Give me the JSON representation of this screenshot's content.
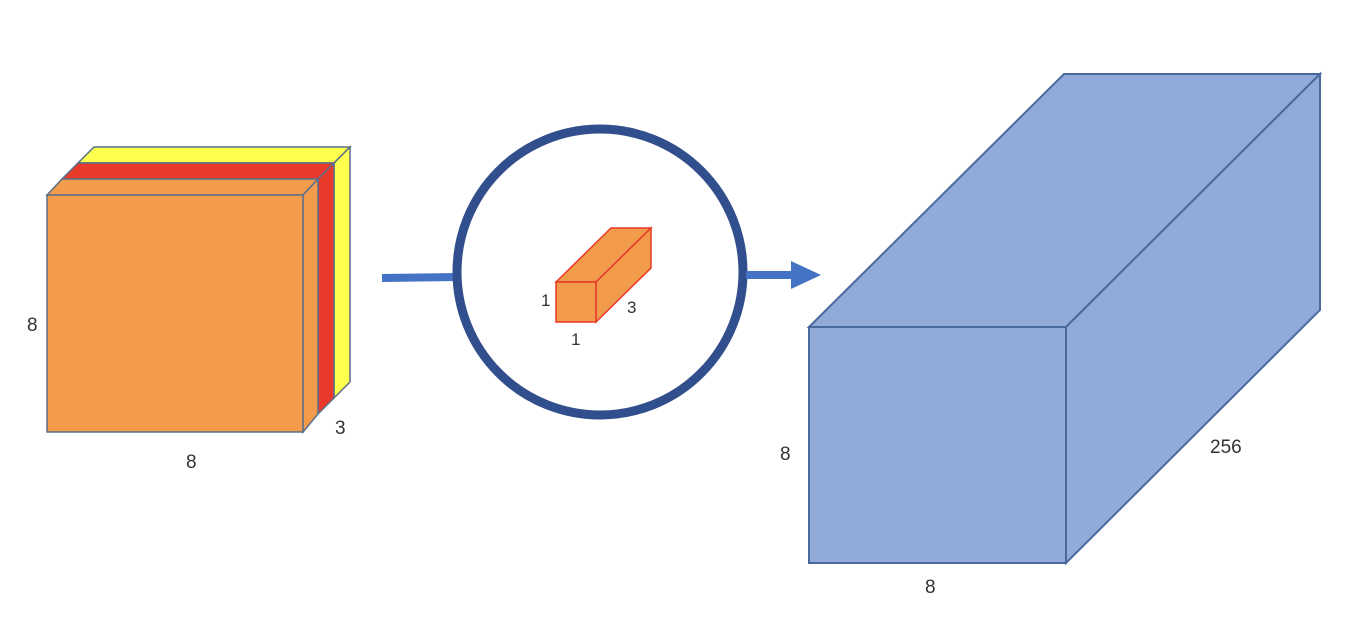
{
  "input_tensor": {
    "height_label": "8",
    "width_label": "8",
    "depth_label": "3",
    "channel_colors": [
      "#f29b4b",
      "#e8392a",
      "#ffff4d"
    ]
  },
  "kernel": {
    "height_label": "1",
    "width_label": "1",
    "depth_label": "3",
    "fill_color": "#f29b4b",
    "edge_color": "#e8392a",
    "ring_color": "#304f8c"
  },
  "output_tensor": {
    "height_label": "8",
    "width_label": "8",
    "depth_label": "256",
    "fill_color": "#92aad8",
    "edge_color": "#4a6a9e"
  },
  "arrow_color": "#4472c4"
}
